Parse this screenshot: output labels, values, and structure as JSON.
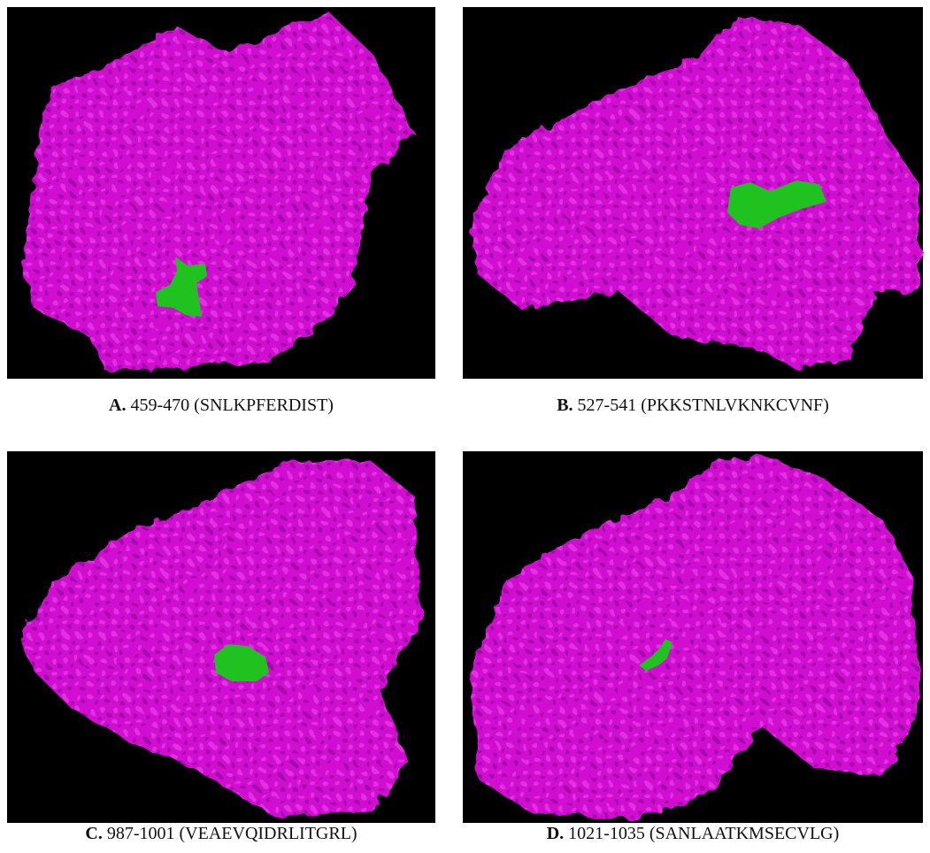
{
  "panels": [
    {
      "label": "A.",
      "caption": "459-470 (SNLKPFERDIST)"
    },
    {
      "label": "B.",
      "caption": "527-541 (PKKSTNLVKNKCVNF)"
    },
    {
      "label": "C.",
      "caption": "987-1001 (VEAEVQIDRLITGRL)"
    },
    {
      "label": "D.",
      "caption": "1021-1035 (SANLAATKMSECVLG)"
    }
  ]
}
